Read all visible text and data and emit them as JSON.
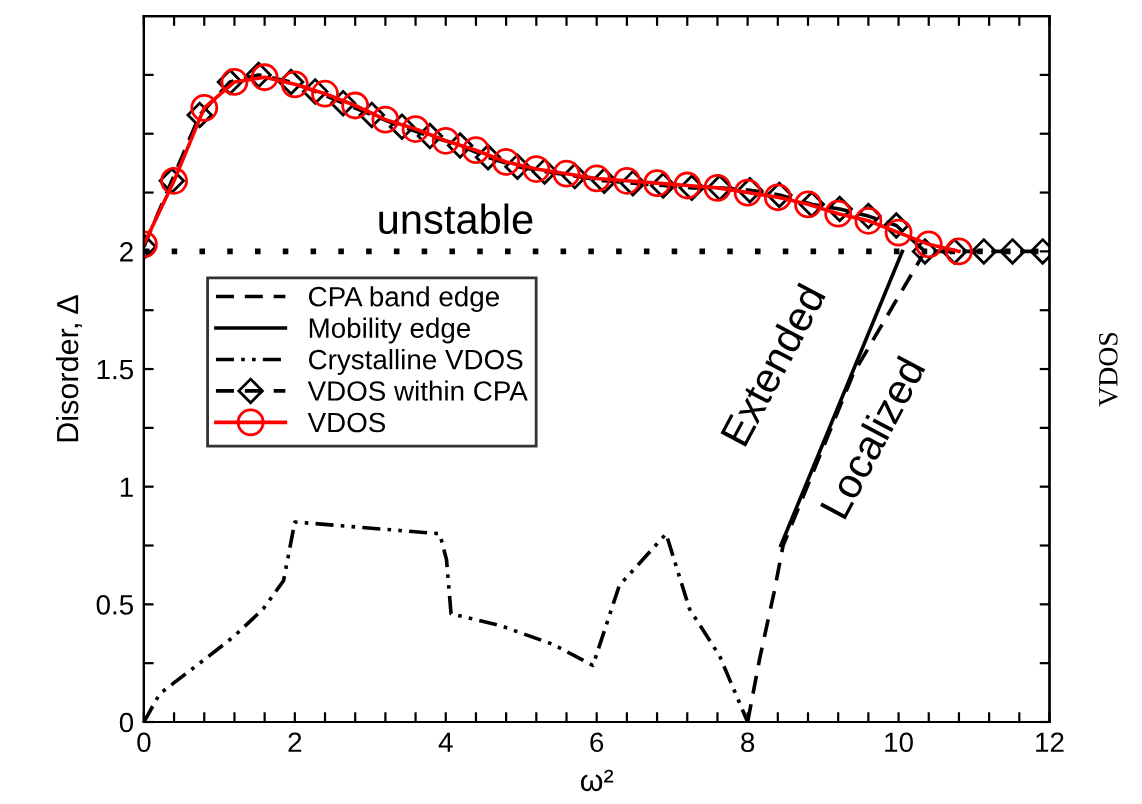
{
  "chart_data": {
    "type": "line",
    "xlabel": "ω²",
    "ylabel": "Disorder, Δ",
    "y2label": "VDOS",
    "xlim": [
      0,
      12
    ],
    "ylim": [
      0,
      3
    ],
    "xticks": [
      0,
      {
        "value": 0.4,
        "label": null
      },
      {
        "value": 0.8,
        "label": null
      },
      {
        "value": 1.2,
        "label": null
      },
      {
        "value": 1.6,
        "label": null
      },
      2,
      {
        "value": 2.4,
        "label": null
      },
      {
        "value": 2.8,
        "label": null
      },
      {
        "value": 3.2,
        "label": null
      },
      {
        "value": 3.6,
        "label": null
      },
      4,
      {
        "value": 4.4,
        "label": null
      },
      {
        "value": 4.8,
        "label": null
      },
      {
        "value": 5.2,
        "label": null
      },
      {
        "value": 5.6,
        "label": null
      },
      6,
      {
        "value": 6.4,
        "label": null
      },
      {
        "value": 6.8,
        "label": null
      },
      {
        "value": 7.2,
        "label": null
      },
      {
        "value": 7.6,
        "label": null
      },
      8,
      {
        "value": 8.4,
        "label": null
      },
      {
        "value": 8.8,
        "label": null
      },
      {
        "value": 9.2,
        "label": null
      },
      {
        "value": 9.6,
        "label": null
      },
      10,
      {
        "value": 10.4,
        "label": null
      },
      {
        "value": 10.8,
        "label": null
      },
      {
        "value": 11.2,
        "label": null
      },
      {
        "value": 11.6,
        "label": null
      },
      12
    ],
    "yticks": [
      0,
      {
        "value": 0.25,
        "label": null
      },
      0.5,
      {
        "value": 0.75,
        "label": null
      },
      1,
      {
        "value": 1.25,
        "label": null
      },
      1.5,
      {
        "value": 1.75,
        "label": null
      },
      2,
      {
        "value": 2.25,
        "label": null
      },
      {
        "value": 2.5,
        "label": null
      },
      {
        "value": 2.75,
        "label": null
      }
    ],
    "grid": false,
    "legend": "left",
    "ref_lines": [
      {
        "axis": "y",
        "value": 2,
        "color": "#000000",
        "line_style": "dotted"
      }
    ],
    "annotations": [
      "unstable",
      "Extended",
      "Localized"
    ],
    "series": [
      {
        "name": "CPA band edge",
        "color": "#000000",
        "line_style": "dashed",
        "marker": "none",
        "x": [
          8.0,
          8.16,
          8.35,
          8.47,
          9.4,
          10.35
        ],
        "values": [
          0,
          0.27,
          0.55,
          0.75,
          1.48,
          2.0
        ]
      },
      {
        "name": "Mobility edge",
        "color": "#000000",
        "line_style": "solid",
        "marker": "none",
        "x": [
          8.44,
          10.05
        ],
        "values": [
          0.75,
          2.0
        ]
      },
      {
        "name": "Crystalline VDOS",
        "color": "#000000",
        "line_style": "dotted",
        "marker": "none",
        "x": [
          0,
          0.21,
          0.74,
          1.18,
          1.58,
          1.85,
          2.0,
          3.92,
          4.01,
          4.07,
          4.72,
          5.42,
          5.95,
          6.3,
          6.92,
          7.23,
          7.63,
          8.0
        ],
        "values": [
          0,
          0.12,
          0.25,
          0.36,
          0.48,
          0.6,
          0.85,
          0.8,
          0.69,
          0.46,
          0.41,
          0.33,
          0.24,
          0.58,
          0.8,
          0.48,
          0.28,
          0
        ]
      },
      {
        "name": "VDOS within CPA",
        "color": "#000000",
        "line_style": "dashed",
        "marker": "diamond",
        "x": [
          0,
          0.37,
          0.74,
          1.14,
          1.52,
          1.95,
          2.27,
          2.64,
          3.02,
          3.42,
          3.79,
          4.19,
          4.56,
          4.95,
          5.31,
          5.71,
          6.1,
          6.48,
          6.88,
          7.26,
          7.63,
          8.03,
          8.42,
          8.85,
          9.22,
          9.6,
          9.97,
          10.35,
          10.74,
          11.13,
          11.51,
          11.91
        ],
        "values": [
          2.02,
          2.3,
          2.58,
          2.72,
          2.75,
          2.72,
          2.68,
          2.63,
          2.58,
          2.53,
          2.49,
          2.45,
          2.4,
          2.36,
          2.34,
          2.32,
          2.3,
          2.29,
          2.28,
          2.27,
          2.27,
          2.26,
          2.24,
          2.2,
          2.18,
          2.15,
          2.11,
          2.0,
          2.0,
          2.0,
          2.0,
          2.0
        ]
      },
      {
        "name": "VDOS",
        "color": "#ff0000",
        "line_style": "solid",
        "marker": "circle",
        "x": [
          0,
          0.4,
          0.8,
          1.2,
          1.6,
          2.0,
          2.4,
          2.8,
          3.2,
          3.6,
          4.0,
          4.4,
          4.8,
          5.2,
          5.6,
          6.0,
          6.4,
          6.8,
          7.2,
          7.6,
          8.0,
          8.4,
          8.8,
          9.2,
          9.6,
          10.0,
          10.4,
          10.8
        ],
        "values": [
          2.03,
          2.3,
          2.61,
          2.72,
          2.74,
          2.71,
          2.67,
          2.62,
          2.56,
          2.52,
          2.47,
          2.43,
          2.38,
          2.35,
          2.33,
          2.31,
          2.3,
          2.29,
          2.28,
          2.27,
          2.25,
          2.23,
          2.2,
          2.16,
          2.13,
          2.08,
          2.03,
          2.0
        ]
      }
    ]
  }
}
